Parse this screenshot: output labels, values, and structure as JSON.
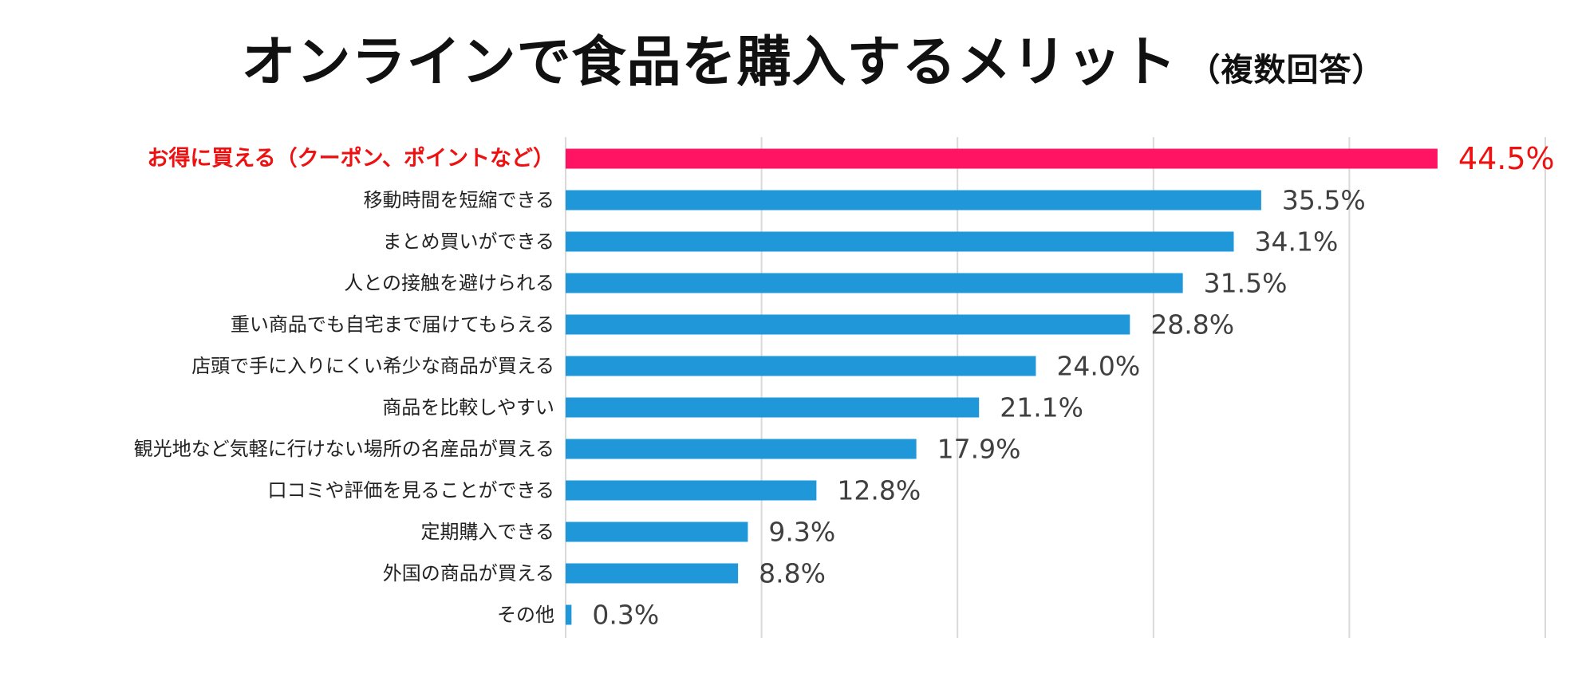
{
  "header": {
    "title": "オンラインで食品を購入するメリット",
    "subtitle": "（複数回答）"
  },
  "chart_data": {
    "type": "bar",
    "orientation": "horizontal",
    "title": "オンラインで食品を購入するメリット（複数回答）",
    "xlim": [
      0,
      50
    ],
    "grid": true,
    "categories": [
      "お得に買える（クーポン、ポイントなど）",
      "移動時間を短縮できる",
      "まとめ買いができる",
      "人との接触を避けられる",
      "重い商品でも自宅まで届けてもらえる",
      "店頭で手に入りにくい希少な商品が買える",
      "商品を比較しやすい",
      "観光地など気軽に行けない場所の名産品が買える",
      "口コミや評価を見ることができる",
      "定期購入できる",
      "外国の商品が買える",
      "その他"
    ],
    "values": [
      44.5,
      35.5,
      34.1,
      31.5,
      28.8,
      24.0,
      21.1,
      17.9,
      12.8,
      9.3,
      8.8,
      0.3
    ],
    "value_labels": [
      "44.5%",
      "35.5%",
      "34.1%",
      "31.5%",
      "28.8%",
      "24.0%",
      "21.1%",
      "17.9%",
      "12.8%",
      "9.3%",
      "8.8%",
      "0.3%"
    ],
    "highlight_index": 0,
    "colors": {
      "bar": "#1f97d8",
      "highlight": "#ff1464",
      "highlight_text": "#ee1111",
      "grid": "#d9d9d9"
    }
  }
}
